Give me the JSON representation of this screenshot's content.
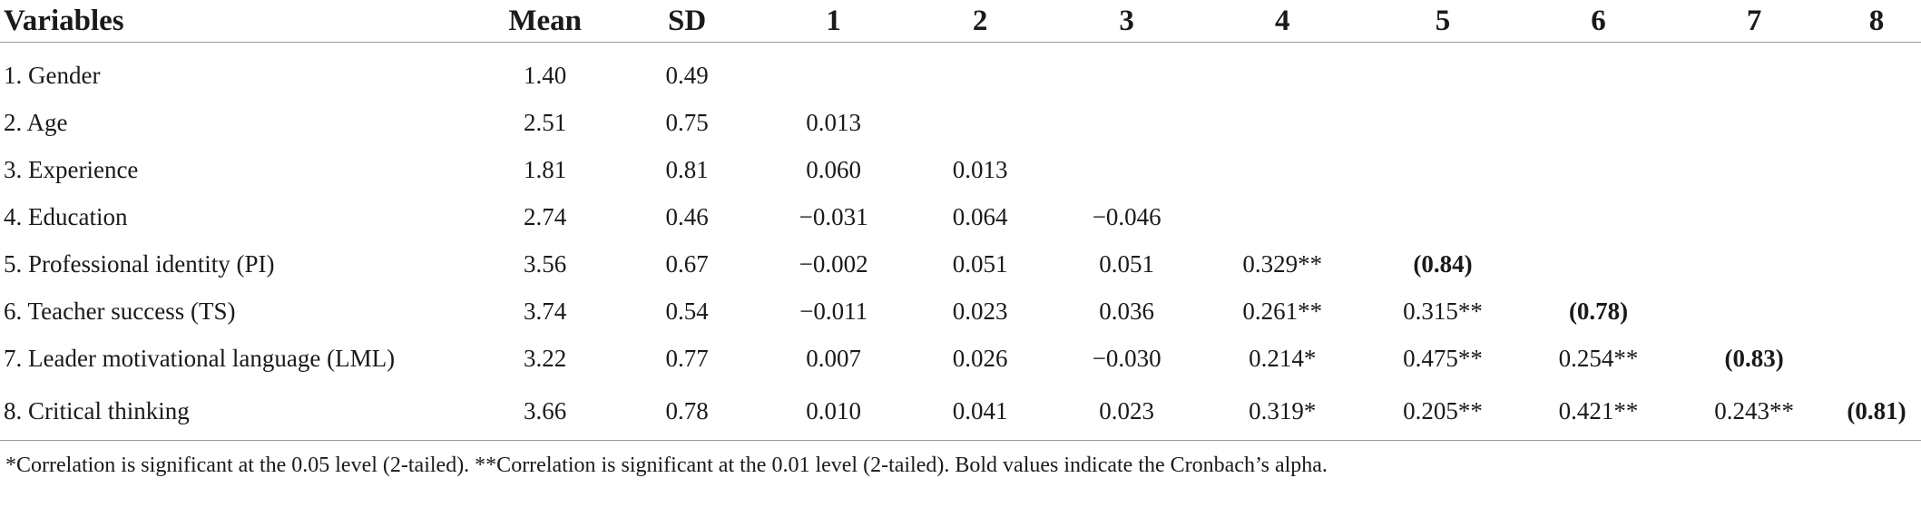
{
  "table": {
    "headers": [
      "Variables",
      "Mean",
      "SD",
      "1",
      "2",
      "3",
      "4",
      "5",
      "6",
      "7",
      "8"
    ],
    "rows": [
      {
        "variable": "1. Gender",
        "mean": "1.40",
        "sd": "0.49",
        "c1": "",
        "c2": "",
        "c3": "",
        "c4": "",
        "c5": "",
        "c6": "",
        "c7": "",
        "c8": ""
      },
      {
        "variable": "2. Age",
        "mean": "2.51",
        "sd": "0.75",
        "c1": "0.013",
        "c2": "",
        "c3": "",
        "c4": "",
        "c5": "",
        "c6": "",
        "c7": "",
        "c8": ""
      },
      {
        "variable": "3. Experience",
        "mean": "1.81",
        "sd": "0.81",
        "c1": "0.060",
        "c2": "0.013",
        "c3": "",
        "c4": "",
        "c5": "",
        "c6": "",
        "c7": "",
        "c8": ""
      },
      {
        "variable": "4. Education",
        "mean": "2.74",
        "sd": "0.46",
        "c1": "−0.031",
        "c2": "0.064",
        "c3": "−0.046",
        "c4": "",
        "c5": "",
        "c6": "",
        "c7": "",
        "c8": ""
      },
      {
        "variable": "5. Professional identity (PI)",
        "mean": "3.56",
        "sd": "0.67",
        "c1": "−0.002",
        "c2": "0.051",
        "c3": "0.051",
        "c4": "0.329**",
        "c5": "(0.84)",
        "c6": "",
        "c7": "",
        "c8": ""
      },
      {
        "variable": "6. Teacher success (TS)",
        "mean": "3.74",
        "sd": "0.54",
        "c1": "−0.011",
        "c2": "0.023",
        "c3": "0.036",
        "c4": "0.261**",
        "c5": "0.315**",
        "c6": "(0.78)",
        "c7": "",
        "c8": ""
      },
      {
        "variable": "7. Leader motivational language (LML)",
        "mean": "3.22",
        "sd": "0.77",
        "c1": "0.007",
        "c2": "0.026",
        "c3": "−0.030",
        "c4": "0.214*",
        "c5": "0.475**",
        "c6": "0.254**",
        "c7": "(0.83)",
        "c8": ""
      },
      {
        "variable": "8. Critical thinking",
        "mean": "3.66",
        "sd": "0.78",
        "c1": "0.010",
        "c2": "0.041",
        "c3": "0.023",
        "c4": "0.319*",
        "c5": "0.205**",
        "c6": "0.421**",
        "c7": "0.243**",
        "c8": "(0.81)"
      }
    ]
  },
  "footnote": "*Correlation is significant at the 0.05 level (2-tailed). **Correlation is significant at the 0.01 level (2-tailed). Bold values indicate the Cronbach’s alpha."
}
